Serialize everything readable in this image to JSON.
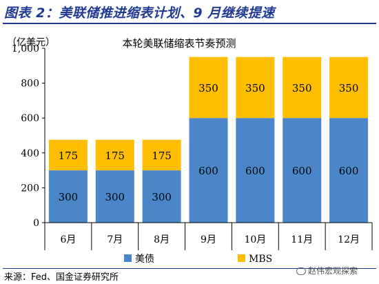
{
  "header": {
    "figure_title": "图表 2：美联储推进缩表计划、9 月继续提速"
  },
  "footer": {
    "source": "来源：Fed、国金证券研究所",
    "watermark": "赵伟宏观探索"
  },
  "colors": {
    "treasury": "#4a86c8",
    "mbs": "#ffbf00",
    "title_blue": "#1f3a93"
  },
  "chart_data": {
    "type": "bar",
    "stacked": true,
    "title": "本轮美联储缩表节奏预测",
    "ylabel": "（亿美元）",
    "xlabel": "",
    "ylim": [
      0,
      1000
    ],
    "yticks": [
      "0",
      "200",
      "400",
      "600",
      "800",
      "1,000"
    ],
    "categories": [
      "6月",
      "7月",
      "8月",
      "9月",
      "10月",
      "11月",
      "12月"
    ],
    "series": [
      {
        "name": "美债",
        "color": "#4a86c8",
        "values": [
          300,
          300,
          300,
          600,
          600,
          600,
          600
        ]
      },
      {
        "name": "MBS",
        "color": "#ffbf00",
        "values": [
          175,
          175,
          175,
          350,
          350,
          350,
          350
        ]
      }
    ],
    "legend_position": "bottom",
    "grid": false
  }
}
